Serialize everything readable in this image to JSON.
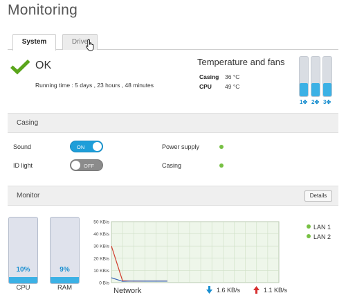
{
  "page_title": "Monitoring",
  "tabs": [
    {
      "label": "System",
      "active": true
    },
    {
      "label": "Drive",
      "active": false
    }
  ],
  "status": {
    "text": "OK",
    "running_time": "Running time : 5 days , 23 hours , 48 minutes"
  },
  "temperature": {
    "title": "Temperature and fans",
    "rows": [
      {
        "label": "Casing",
        "value": "36 °C"
      },
      {
        "label": "CPU",
        "value": "49 °C"
      }
    ],
    "fans": [
      {
        "label": "1",
        "level": 0.33
      },
      {
        "label": "2",
        "level": 0.33
      },
      {
        "label": "3",
        "level": 0.33
      }
    ]
  },
  "casing": {
    "title": "Casing",
    "sound_label": "Sound",
    "sound_state": "ON",
    "id_light_label": "ID light",
    "id_light_state": "OFF",
    "power_supply_label": "Power supply",
    "casing_label": "Casing"
  },
  "monitor": {
    "title": "Monitor",
    "details_label": "Details",
    "cpu": {
      "value": "10%",
      "name": "CPU",
      "level": 0.1
    },
    "ram": {
      "value": "9%",
      "name": "RAM",
      "level": 0.09
    },
    "network_label": "Network",
    "download_rate": "1.6 KB/s",
    "upload_rate": "1.1 KB/s",
    "legend": [
      "LAN 1",
      "LAN 2"
    ]
  },
  "colors": {
    "accent": "#1e9ed9",
    "status_ok": "#77c043",
    "check": "#5aa51b",
    "upload_arrow": "#d62e2e",
    "download_arrow": "#1a8fd0"
  },
  "chart_data": {
    "type": "line",
    "y_ticks": [
      "50 KB/s",
      "40 KB/s",
      "30 KB/s",
      "20 KB/s",
      "10 KB/s",
      "0 B/s"
    ],
    "ylim": [
      0,
      50
    ],
    "x": [
      0,
      1,
      2,
      3,
      4,
      5,
      6,
      7,
      8,
      9,
      10,
      11,
      12,
      13,
      14,
      15
    ],
    "grid": true,
    "series": [
      {
        "name": "LAN 1",
        "color": "#d13b2c",
        "values": [
          30,
          1.5,
          1.2,
          1.2,
          1.2,
          1.2,
          null,
          null,
          null,
          null,
          null,
          null,
          null,
          null,
          null,
          null
        ]
      },
      {
        "name": "LAN 2",
        "color": "#3b66b8",
        "values": [
          4,
          1,
          1.3,
          1.2,
          1.2,
          1.2,
          null,
          null,
          null,
          null,
          null,
          null,
          null,
          null,
          null,
          null
        ]
      }
    ]
  }
}
